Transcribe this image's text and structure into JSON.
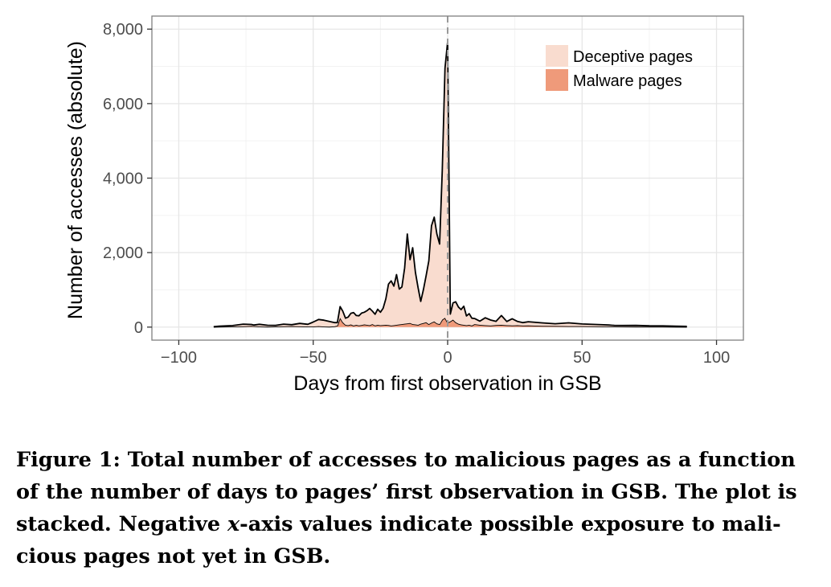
{
  "chart_data": {
    "type": "area",
    "stacked": true,
    "xlabel": "Days from first observation in GSB",
    "ylabel": "Number of accesses (absolute)",
    "xlim": [
      -110,
      110
    ],
    "ylim": [
      -350,
      8350
    ],
    "x_ticks": [
      -100,
      -50,
      0,
      50,
      100
    ],
    "x_tick_labels": [
      "−100",
      "−50",
      "0",
      "50",
      "100"
    ],
    "y_ticks": [
      0,
      2000,
      4000,
      6000,
      8000
    ],
    "y_tick_labels": [
      "0",
      "2,000",
      "4,000",
      "6,000",
      "8,000"
    ],
    "grid": true,
    "legend_position": "top-right",
    "reference_line_x": 0,
    "x": [
      -87,
      -85,
      -80,
      -76,
      -73,
      -72,
      -70,
      -67,
      -64,
      -61,
      -58,
      -55,
      -52,
      -50,
      -48,
      -46,
      -44,
      -42,
      -41,
      -40,
      -39,
      -38,
      -37,
      -36,
      -35,
      -34,
      -33,
      -32,
      -31,
      -30,
      -29,
      -28,
      -27,
      -26,
      -25,
      -24,
      -23,
      -22,
      -21,
      -20,
      -19,
      -18,
      -17,
      -16,
      -15,
      -14,
      -13,
      -12,
      -11,
      -10,
      -9,
      -8,
      -7,
      -6,
      -5,
      -4,
      -3,
      -2,
      -1,
      0,
      1,
      2,
      3,
      4,
      5,
      6,
      7,
      8,
      9,
      10,
      12,
      14,
      16,
      18,
      20,
      22,
      24,
      26,
      28,
      30,
      35,
      40,
      45,
      50,
      55,
      60,
      62,
      65,
      70,
      75,
      80,
      85,
      89
    ],
    "series": [
      {
        "name": "Malware pages",
        "color": "#ef9a7a",
        "values": [
          5,
          10,
          15,
          20,
          30,
          25,
          15,
          10,
          15,
          20,
          25,
          20,
          15,
          15,
          25,
          15,
          10,
          20,
          40,
          250,
          130,
          60,
          50,
          70,
          40,
          60,
          45,
          55,
          70,
          60,
          50,
          80,
          45,
          60,
          50,
          55,
          60,
          55,
          40,
          50,
          60,
          70,
          80,
          90,
          100,
          110,
          80,
          70,
          60,
          90,
          110,
          130,
          80,
          120,
          150,
          100,
          80,
          200,
          250,
          120,
          150,
          200,
          130,
          90,
          70,
          60,
          50,
          60,
          40,
          80,
          60,
          50,
          40,
          55,
          60,
          50,
          45,
          50,
          40,
          45,
          35,
          30,
          25,
          25,
          20,
          15,
          15,
          12,
          10,
          10,
          8,
          6,
          5
        ]
      },
      {
        "name": "Deceptive pages",
        "color": "#f9dccf",
        "values": [
          5,
          15,
          25,
          60,
          40,
          30,
          60,
          40,
          30,
          60,
          40,
          80,
          60,
          120,
          180,
          170,
          140,
          100,
          80,
          300,
          300,
          180,
          220,
          300,
          350,
          250,
          260,
          320,
          330,
          380,
          450,
          350,
          300,
          420,
          350,
          450,
          700,
          1100,
          1200,
          1050,
          1350,
          950,
          1000,
          1500,
          2400,
          1700,
          2050,
          1400,
          1000,
          600,
          900,
          1250,
          1700,
          2600,
          2800,
          2400,
          2150,
          4000,
          6700,
          7550,
          200,
          450,
          550,
          450,
          400,
          500,
          250,
          300,
          200,
          150,
          100,
          200,
          150,
          100,
          250,
          100,
          180,
          100,
          80,
          100,
          80,
          60,
          90,
          60,
          50,
          40,
          30,
          30,
          35,
          25,
          25,
          20,
          15
        ]
      }
    ]
  },
  "caption": {
    "line1": "Figure 1:  Total number of accesses to malicious pages as a function",
    "line2": "of the number of days to pages’ first observation in GSB. The plot is",
    "line3_a": "stacked. Negative ",
    "line3_x": "x",
    "line3_b": "-axis values indicate possible exposure to mali-",
    "line4": "cious pages not yet in GSB."
  }
}
